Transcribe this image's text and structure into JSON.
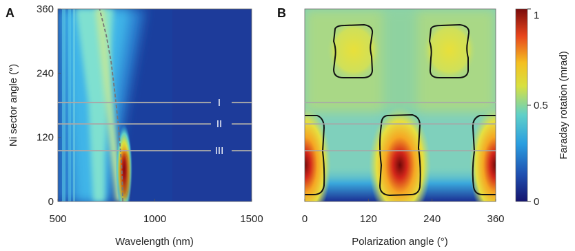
{
  "chart_data": [
    {
      "panel": "A",
      "type": "heatmap",
      "xlabel": "Wavelength (nm)",
      "ylabel": "Ni sector angle (°)",
      "xlim": [
        500,
        1500
      ],
      "ylim": [
        0,
        360
      ],
      "xticks": [
        "500",
        "1000",
        "1500"
      ],
      "yticks": [
        "0",
        "120",
        "240",
        "360"
      ],
      "resonance_curve": {
        "x": [
          835,
          830,
          822,
          810,
          795,
          775,
          750,
          715
        ],
        "y": [
          0,
          60,
          100,
          150,
          200,
          260,
          310,
          360
        ]
      },
      "peak": {
        "x": 840,
        "y": 60,
        "value": 1.0
      },
      "cuts": [
        {
          "label": "I",
          "y": 185
        },
        {
          "label": "II",
          "y": 145
        },
        {
          "label": "III",
          "y": 95
        }
      ]
    },
    {
      "panel": "B",
      "type": "heatmap",
      "xlabel": "Polarization angle (°)",
      "xlim": [
        0,
        360
      ],
      "ylim": [
        0,
        360
      ],
      "xticks": [
        "0",
        "120",
        "240",
        "360"
      ],
      "hot_spots": [
        {
          "x": 0,
          "y": 60,
          "value": 1.0
        },
        {
          "x": 180,
          "y": 60,
          "value": 1.0
        },
        {
          "x": 360,
          "y": 60,
          "value": 1.0
        },
        {
          "x": 90,
          "y": 275,
          "value": 0.62
        },
        {
          "x": 270,
          "y": 275,
          "value": 0.62
        }
      ],
      "contour_level": 0.5,
      "cuts_y": [
        185,
        145,
        95
      ]
    }
  ],
  "colorbar": {
    "label": "Faraday rotation (mrad)",
    "ticks": [
      "0",
      "0.5",
      "1"
    ],
    "range": [
      0,
      1
    ],
    "colors": [
      "#15146e",
      "#1f4fb0",
      "#2a9ee0",
      "#5fd0c8",
      "#d8e040",
      "#f4c021",
      "#e8451c",
      "#7a0b0b"
    ]
  }
}
